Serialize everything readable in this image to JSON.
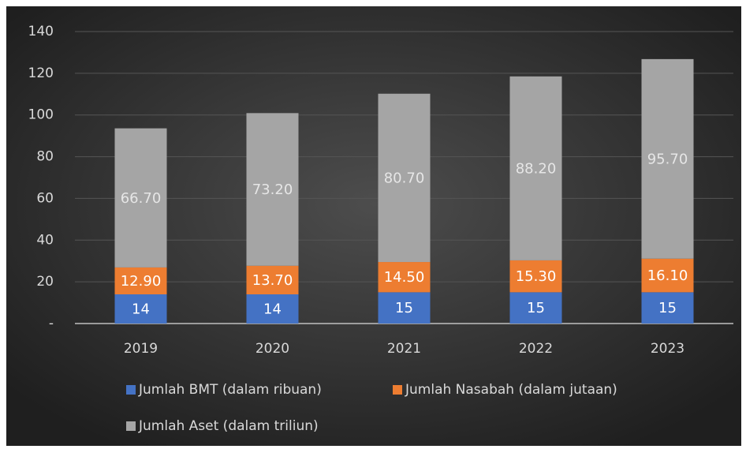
{
  "chart_data": {
    "type": "stacked_bar",
    "categories": [
      "2019",
      "2020",
      "2021",
      "2022",
      "2023"
    ],
    "series": [
      {
        "name": "Jumlah BMT (dalam ribuan)",
        "color": "#4472c4",
        "values": [
          14,
          14,
          15,
          15,
          15
        ]
      },
      {
        "name": "Jumlah Nasabah (dalam jutaan)",
        "color": "#ed7d31",
        "values": [
          12.9,
          13.7,
          14.5,
          15.3,
          16.1
        ],
        "value_labels": [
          "12.90",
          "13.70",
          "14.50",
          "15.30",
          "16.10"
        ]
      },
      {
        "name": "Jumlah Aset (dalam triliun)",
        "color": "#a5a5a5",
        "values": [
          66.7,
          73.2,
          80.7,
          88.2,
          95.7
        ],
        "value_labels": [
          "66.70",
          "73.20",
          "80.70",
          "88.20",
          "95.70"
        ]
      }
    ],
    "ylim": [
      0,
      140
    ],
    "yticks": [
      {
        "value": 0,
        "label": "-"
      },
      20,
      40,
      60,
      80,
      100,
      120,
      140
    ],
    "grid": true,
    "legend": "bottom"
  }
}
